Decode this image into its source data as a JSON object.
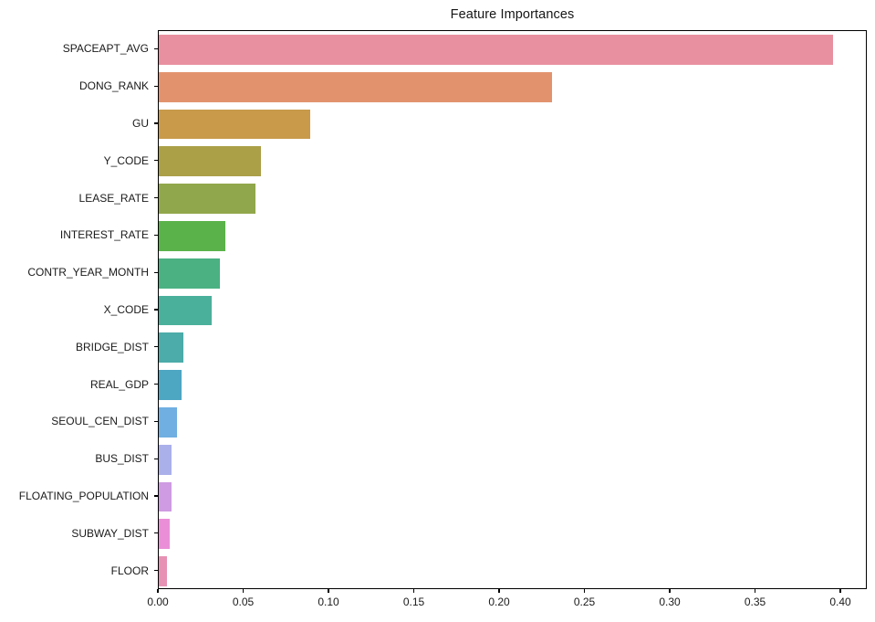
{
  "chart_data": {
    "type": "bar",
    "orientation": "horizontal",
    "title": "Feature Importances",
    "xlabel": "",
    "ylabel": "",
    "grid": false,
    "legend_position": "none",
    "background_color": "#ffffff",
    "axis_color": "#000000",
    "text_color": "#1a1a1a",
    "xlim": [
      0,
      0.4155
    ],
    "x_ticks": [
      0.0,
      0.05,
      0.1,
      0.15,
      0.2,
      0.25,
      0.3,
      0.35,
      0.4
    ],
    "x_tick_labels": [
      "0.00",
      "0.05",
      "0.10",
      "0.15",
      "0.20",
      "0.25",
      "0.30",
      "0.35",
      "0.40"
    ],
    "categories": [
      "SPACEAPT_AVG",
      "DONG_RANK",
      "GU",
      "Y_CODE",
      "LEASE_RATE",
      "INTEREST_RATE",
      "CONTR_YEAR_MONTH",
      "X_CODE",
      "BRIDGE_DIST",
      "REAL_GDP",
      "SEOUL_CEN_DIST",
      "BUS_DIST",
      "FLOATING_POPULATION",
      "SUBWAY_DIST",
      "FLOOR"
    ],
    "values": [
      0.396,
      0.231,
      0.089,
      0.06,
      0.057,
      0.039,
      0.036,
      0.031,
      0.0144,
      0.0134,
      0.0107,
      0.0075,
      0.0074,
      0.0065,
      0.0048
    ],
    "bar_colors": [
      "#e8909f",
      "#e2936e",
      "#c89a4a",
      "#ab9f48",
      "#91a74b",
      "#5ab24a",
      "#4bb183",
      "#4ab09b",
      "#4caca9",
      "#4da6c2",
      "#70afe2",
      "#aab0ea",
      "#cf9be2",
      "#ea8fd7",
      "#e792b4"
    ]
  }
}
